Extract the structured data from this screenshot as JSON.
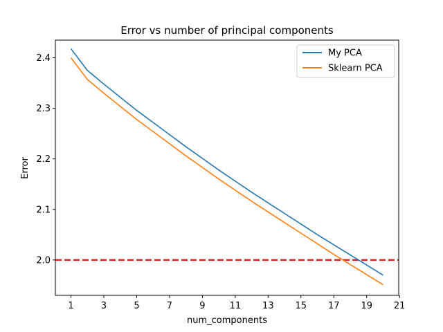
{
  "chart_data": {
    "type": "line",
    "title": "Error vs number of principal components",
    "xlabel": "num_components",
    "ylabel": "Error",
    "xlim": [
      0.05,
      20.95
    ],
    "ylim": [
      1.93,
      2.435
    ],
    "xticks": [
      1,
      3,
      5,
      7,
      9,
      11,
      13,
      15,
      17,
      19,
      21
    ],
    "yticks": [
      2.0,
      2.1,
      2.2,
      2.3,
      2.4
    ],
    "ytick_labels": [
      "2.0",
      "2.1",
      "2.2",
      "2.3",
      "2.4"
    ],
    "grid": false,
    "legend_position": "top-right",
    "x": [
      1,
      2,
      3,
      4,
      5,
      6,
      7,
      8,
      9,
      10,
      11,
      12,
      13,
      14,
      15,
      16,
      17,
      18,
      19,
      20
    ],
    "series": [
      {
        "name": "My PCA",
        "color": "#1f77b4",
        "values": [
          2.418,
          2.375,
          2.348,
          2.322,
          2.296,
          2.272,
          2.248,
          2.224,
          2.201,
          2.178,
          2.156,
          2.134,
          2.113,
          2.092,
          2.071,
          2.05,
          2.03,
          2.01,
          1.99,
          1.97
        ]
      },
      {
        "name": "Sklearn PCA",
        "color": "#ff7f0e",
        "values": [
          2.4,
          2.357,
          2.33,
          2.304,
          2.278,
          2.254,
          2.23,
          2.206,
          2.183,
          2.16,
          2.138,
          2.116,
          2.095,
          2.074,
          2.053,
          2.032,
          2.011,
          1.991,
          1.971,
          1.951
        ]
      }
    ],
    "annotations": [
      {
        "type": "hline",
        "y": 2.0,
        "color": "#d62728",
        "style": "dashed"
      }
    ]
  }
}
